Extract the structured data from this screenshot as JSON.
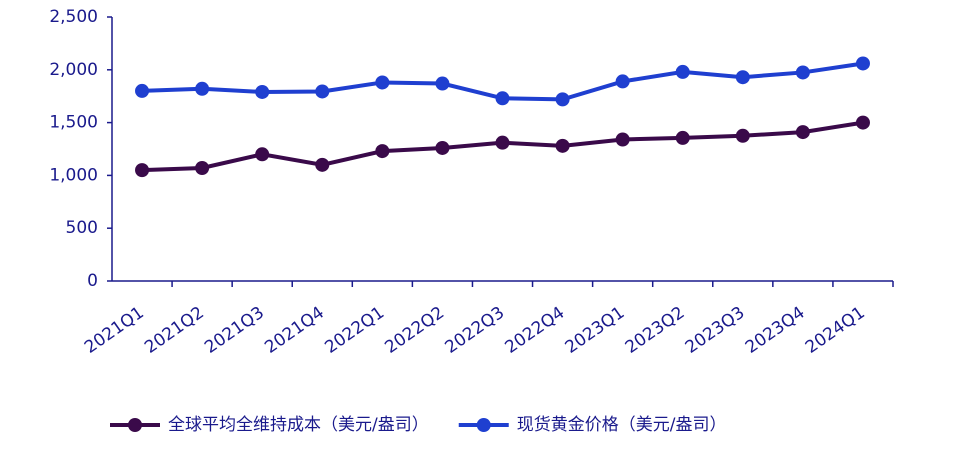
{
  "chart_data": {
    "type": "line",
    "categories": [
      "2021Q1",
      "2021Q2",
      "2021Q3",
      "2021Q4",
      "2022Q1",
      "2022Q2",
      "2022Q3",
      "2022Q4",
      "2023Q1",
      "2023Q2",
      "2023Q3",
      "2023Q4",
      "2024Q1"
    ],
    "series": [
      {
        "name": "全球平均全维持成本（美元/盎司）",
        "color": "#3a0a4a",
        "values": [
          1050,
          1070,
          1200,
          1100,
          1230,
          1260,
          1310,
          1280,
          1340,
          1355,
          1375,
          1410,
          1500
        ]
      },
      {
        "name": "现货黄金价格（美元/盎司）",
        "color": "#1f3fd0",
        "values": [
          1800,
          1820,
          1790,
          1795,
          1880,
          1870,
          1730,
          1720,
          1890,
          1980,
          1930,
          1975,
          2060
        ]
      }
    ],
    "ylim": [
      0,
      2500
    ],
    "yticks": [
      0,
      500,
      {
        "value": 1000,
        "label": "1,000"
      },
      {
        "value": 1500,
        "label": "1,500"
      },
      {
        "value": 2000,
        "label": "2,000"
      },
      {
        "value": 2500,
        "label": "2,500"
      }
    ]
  }
}
